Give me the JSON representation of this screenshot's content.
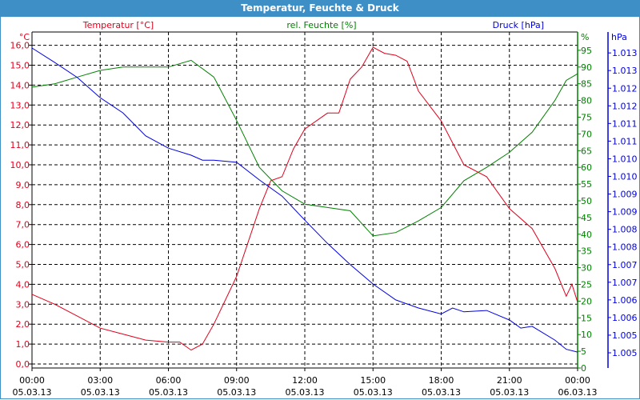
{
  "window": {
    "title": "Temperatur, Feuchte & Druck"
  },
  "colors": {
    "temp": "#e0001c",
    "hum": "#008000",
    "press": "#0000e0",
    "title_bg": "#3e8fc6"
  },
  "chart_data": {
    "type": "line",
    "title": "Temperatur, Feuchte & Druck",
    "grid": true,
    "x_labels": [
      {
        "time": "00:00",
        "date": "05.03.13"
      },
      {
        "time": "03:00",
        "date": "05.03.13"
      },
      {
        "time": "06:00",
        "date": "05.03.13"
      },
      {
        "time": "09:00",
        "date": "05.03.13"
      },
      {
        "time": "12:00",
        "date": "05.03.13"
      },
      {
        "time": "15:00",
        "date": "05.03.13"
      },
      {
        "time": "18:00",
        "date": "05.03.13"
      },
      {
        "time": "21:00",
        "date": "05.03.13"
      },
      {
        "time": "00:00",
        "date": "06.03.13"
      }
    ],
    "x_hours": [
      0,
      1,
      2,
      3,
      4,
      5,
      6,
      7,
      7.5,
      8,
      9,
      10,
      10.5,
      11,
      11.5,
      12,
      13,
      13.5,
      14,
      14.5,
      15,
      15.5,
      16,
      16.5,
      17,
      18,
      19,
      20,
      21,
      22,
      23,
      23.5,
      23.75,
      24
    ],
    "axes": {
      "temp": {
        "unit": "°C",
        "ticks": [
          "0,0",
          "1,0",
          "2,0",
          "3,0",
          "4,0",
          "5,0",
          "6,0",
          "7,0",
          "8,0",
          "9,0",
          "10,0",
          "11,0",
          "12,0",
          "13,0",
          "14,0",
          "15,0",
          "16,0"
        ],
        "range": [
          -0.2,
          16.1
        ]
      },
      "hum": {
        "unit": "%",
        "ticks": [
          "0",
          "5",
          "10",
          "15",
          "20",
          "25",
          "30",
          "35",
          "40",
          "45",
          "50",
          "55",
          "60",
          "65",
          "70",
          "75",
          "80",
          "85",
          "90",
          "95"
        ],
        "range": [
          0,
          100.5
        ]
      },
      "press": {
        "unit": "hPa",
        "ticks": [
          "1.005",
          "1.005",
          "1.006",
          "1.006",
          "1.007",
          "1.007",
          "1.008",
          "1.008",
          "1.009",
          "1.009",
          "1.010",
          "1.010",
          "1.011",
          "1.011",
          "1.012",
          "1.012",
          "1.013",
          "1.013"
        ],
        "tick_start": 1004.9,
        "tick_step": 0.5
      }
    },
    "series": [
      {
        "name": "Temperatur [°C]",
        "axis": "temp",
        "x": [
          0,
          1,
          2,
          3,
          4,
          5,
          6,
          6.5,
          7,
          7.5,
          8,
          9,
          10,
          10.5,
          11,
          11.5,
          12,
          13,
          13.5,
          14,
          14.5,
          15,
          15.5,
          16,
          16.5,
          17,
          18,
          19,
          20,
          21,
          22,
          23,
          23.5,
          23.75,
          24
        ],
        "values": [
          3.5,
          3.0,
          2.4,
          1.8,
          1.5,
          1.2,
          1.1,
          1.1,
          0.7,
          1.0,
          2.0,
          4.4,
          7.8,
          9.2,
          9.4,
          10.8,
          11.8,
          12.6,
          12.6,
          14.3,
          14.9,
          15.9,
          15.6,
          15.5,
          15.2,
          13.7,
          12.2,
          10.0,
          9.4,
          7.8,
          6.8,
          4.8,
          3.4,
          4.0,
          3.1
        ]
      },
      {
        "name": "rel. Feuchte [%]",
        "axis": "hum",
        "x": [
          0,
          1,
          2,
          3,
          4,
          5,
          6,
          7,
          8,
          9,
          10,
          11,
          12,
          13,
          14,
          15,
          16,
          17,
          18,
          19,
          20,
          21,
          22,
          23,
          23.5,
          24
        ],
        "values": [
          84,
          85,
          87,
          89,
          90,
          90,
          90,
          92,
          87,
          74,
          60,
          53,
          49,
          48,
          47,
          39.5,
          40.5,
          44,
          48,
          56,
          60,
          64.5,
          70.5,
          80,
          86,
          88
        ]
      },
      {
        "name": "Druck [hPa]",
        "axis": "press",
        "x": [
          0,
          1,
          2,
          3,
          4,
          5,
          6,
          7,
          7.5,
          8,
          9,
          10,
          11,
          12,
          13,
          14,
          15,
          16,
          17,
          18,
          18.5,
          19,
          20,
          21,
          21.5,
          22,
          23,
          23.5,
          24
        ],
        "values": [
          1013.54,
          1013.13,
          1012.7,
          1012.13,
          1011.7,
          1011.05,
          1010.7,
          1010.5,
          1010.36,
          1010.36,
          1010.3,
          1009.8,
          1009.34,
          1008.66,
          1008.0,
          1007.4,
          1006.85,
          1006.4,
          1006.17,
          1006.0,
          1006.17,
          1006.06,
          1006.1,
          1005.83,
          1005.6,
          1005.65,
          1005.26,
          1005.0,
          1004.92
        ]
      }
    ]
  }
}
